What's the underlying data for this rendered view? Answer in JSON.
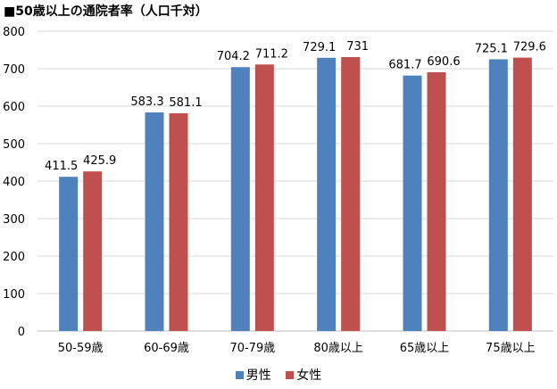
{
  "chart_data": {
    "type": "bar",
    "title": "■50歳以上の通院者率（人口千対）",
    "categories": [
      "50-59歳",
      "60-69歳",
      "70-79歳",
      "80歳以上",
      "65歳以上",
      "75歳以上"
    ],
    "series": [
      {
        "name": "男性",
        "values": [
          411.5,
          583.3,
          704.2,
          729.1,
          681.7,
          725.1
        ],
        "labels": [
          "411.5",
          "583.3",
          "704.2",
          "729.1",
          "681.7",
          "725.1"
        ],
        "color": "#4F81BD"
      },
      {
        "name": "女性",
        "values": [
          425.9,
          581.1,
          711.2,
          731,
          690.6,
          729.6
        ],
        "labels": [
          "425.9",
          "581.1",
          "711.2",
          "731",
          "690.6",
          "729.6"
        ],
        "color": "#C0504D"
      }
    ],
    "ylim": [
      0,
      800
    ],
    "yticks": [
      0,
      100,
      200,
      300,
      400,
      500,
      600,
      700,
      800
    ],
    "grid": true,
    "legend_position": "bottom",
    "xlabel": "",
    "ylabel": ""
  }
}
